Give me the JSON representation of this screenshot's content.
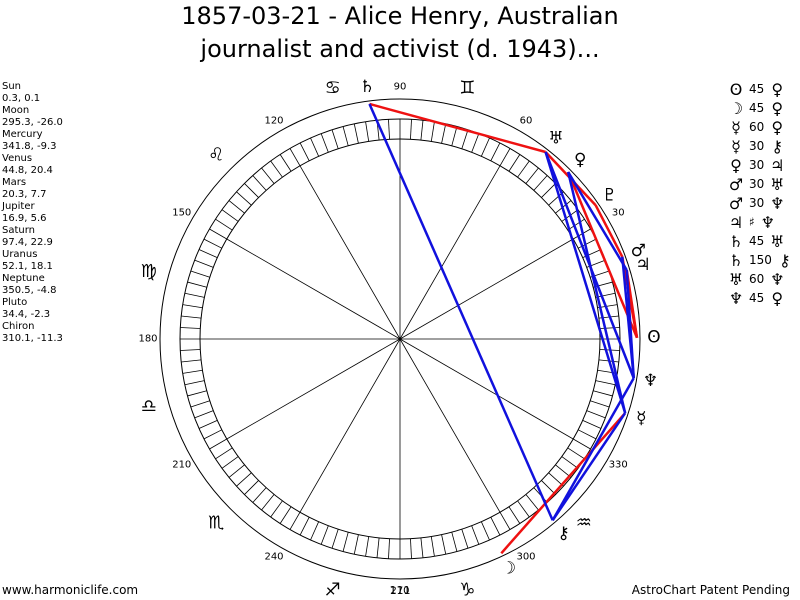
{
  "title": {
    "line1": "1857-03-21 - Alice Henry, Australian",
    "line2": "journalist and activist (d. 1943)..."
  },
  "planets": [
    {
      "name": "Sun",
      "coords": "0.3, 0.1",
      "lon": 0.3,
      "glyph": "ʘ"
    },
    {
      "name": "Moon",
      "coords": "295.3, -26.0",
      "lon": 295.3,
      "glyph": "☽"
    },
    {
      "name": "Mercury",
      "coords": "341.8, -9.3",
      "lon": 341.8,
      "glyph": "☿"
    },
    {
      "name": "Venus",
      "coords": "44.8, 20.4",
      "lon": 44.8,
      "glyph": "♀"
    },
    {
      "name": "Mars",
      "coords": "20.3, 7.7",
      "lon": 20.3,
      "glyph": "♂"
    },
    {
      "name": "Jupiter",
      "coords": "16.9, 5.6",
      "lon": 16.9,
      "glyph": "♃"
    },
    {
      "name": "Saturn",
      "coords": "97.4, 22.9",
      "lon": 97.4,
      "glyph": "♄"
    },
    {
      "name": "Uranus",
      "coords": "52.1, 18.1",
      "lon": 52.1,
      "glyph": "♅"
    },
    {
      "name": "Neptune",
      "coords": "350.5, -4.8",
      "lon": 350.5,
      "glyph": "♆"
    },
    {
      "name": "Pluto",
      "coords": "34.4, -2.3",
      "lon": 34.4,
      "glyph": "♇"
    },
    {
      "name": "Chiron",
      "coords": "310.1, -11.3",
      "lon": 310.1,
      "glyph": "⚷"
    }
  ],
  "aspects": [
    {
      "p1": "ʘ",
      "val": "45",
      "p2": "♀"
    },
    {
      "p1": "☽",
      "val": "45",
      "p2": "♀"
    },
    {
      "p1": "☿",
      "val": "60",
      "p2": "♀"
    },
    {
      "p1": "☿",
      "val": "30",
      "p2": "⚷"
    },
    {
      "p1": "♀",
      "val": "30",
      "p2": "♃"
    },
    {
      "p1": "♂",
      "val": "30",
      "p2": "♅"
    },
    {
      "p1": "♂",
      "val": "30",
      "p2": "♆"
    },
    {
      "p1": "♃",
      "val": "♯",
      "p2": "♆"
    },
    {
      "p1": "♄",
      "val": "45",
      "p2": "♅"
    },
    {
      "p1": "♄",
      "val": "150",
      "p2": "⚷"
    },
    {
      "p1": "♅",
      "val": "60",
      "p2": "♆"
    },
    {
      "p1": "♆",
      "val": "45",
      "p2": "♀"
    }
  ],
  "wheel": {
    "degree_labels": [
      {
        "deg": 0,
        "text": ""
      },
      {
        "deg": 30,
        "text": "30"
      },
      {
        "deg": 60,
        "text": "60"
      },
      {
        "deg": 90,
        "text": "90"
      },
      {
        "deg": 120,
        "text": "120"
      },
      {
        "deg": 150,
        "text": "150"
      },
      {
        "deg": 180,
        "text": "180"
      },
      {
        "deg": 210,
        "text": "210"
      },
      {
        "deg": 240,
        "text": "240"
      },
      {
        "deg": 270,
        "text": "270"
      },
      {
        "deg": 300,
        "text": "300"
      },
      {
        "deg": 330,
        "text": "330"
      }
    ],
    "signs": [
      {
        "name": "gemini",
        "glyph": "♊",
        "deg": 75
      },
      {
        "name": "cancer",
        "glyph": "♋",
        "deg": 105
      },
      {
        "name": "leo",
        "glyph": "♌",
        "deg": 135
      },
      {
        "name": "virgo",
        "glyph": "♍",
        "deg": 165
      },
      {
        "name": "libra",
        "glyph": "♎",
        "deg": 195
      },
      {
        "name": "scorpio",
        "glyph": "♏",
        "deg": 225
      },
      {
        "name": "sagittarius",
        "glyph": "♐",
        "deg": 255
      },
      {
        "name": "capricorn",
        "glyph": "♑",
        "deg": 285
      },
      {
        "name": "aquarius",
        "glyph": "♒",
        "deg": 315
      }
    ],
    "red_links": [
      [
        97.4,
        52.1
      ],
      [
        52.1,
        34.4
      ],
      [
        34.4,
        20.3
      ],
      [
        20.3,
        0.3
      ],
      [
        44.8,
        0.3
      ],
      [
        295.3,
        341.8
      ],
      [
        16.9,
        0.3
      ]
    ],
    "blue_links": [
      [
        97.4,
        310.1
      ],
      [
        52.1,
        341.8
      ],
      [
        44.8,
        341.8
      ],
      [
        310.1,
        341.8
      ],
      [
        44.8,
        16.9
      ],
      [
        16.9,
        350.5
      ],
      [
        52.1,
        350.5
      ],
      [
        20.3,
        350.5
      ],
      [
        350.5,
        310.1
      ]
    ],
    "colors": {
      "red": "#ee1111",
      "blue": "#1111dd"
    }
  },
  "footer": {
    "left": "www.harmoniclife.com",
    "center": "111",
    "right": "AstroChart Patent Pending"
  }
}
